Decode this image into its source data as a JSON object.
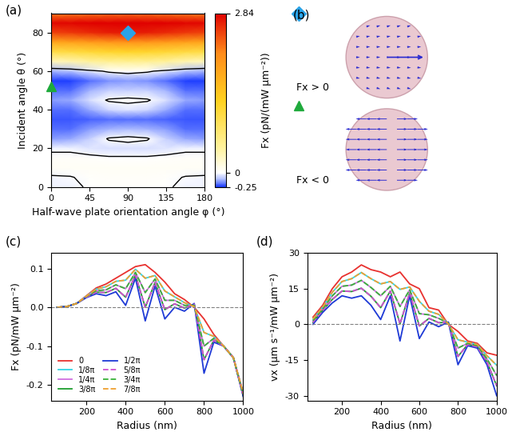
{
  "chart_data": [
    {
      "type": "heatmap",
      "label": "(a)",
      "x_label": "Half-wave plate orientation angle φ (°)",
      "y_label": "Incident angle θ (°)",
      "x": [
        0,
        22.5,
        45,
        67.5,
        90,
        112.5,
        135,
        157.5,
        180
      ],
      "y": [
        0,
        5,
        10,
        15,
        20,
        25,
        30,
        35,
        40,
        45,
        50,
        55,
        60,
        65,
        70,
        75,
        80,
        85,
        90
      ],
      "cells": [
        [
          -0.02,
          -0.02,
          0.01,
          0.02,
          0.02,
          0.02,
          0.01,
          -0.02,
          -0.02
        ],
        [
          -0.01,
          -0.005,
          0.02,
          0.03,
          0.03,
          0.03,
          0.02,
          -0.005,
          -0.01
        ],
        [
          0.04,
          0.04,
          0.05,
          0.05,
          0.05,
          0.05,
          0.05,
          0.04,
          0.04
        ],
        [
          0.03,
          0.03,
          0.02,
          0.01,
          0.01,
          0.01,
          0.02,
          0.03,
          0.03
        ],
        [
          -0.02,
          -0.02,
          -0.04,
          -0.05,
          -0.05,
          -0.05,
          -0.04,
          -0.02,
          -0.02
        ],
        [
          -0.15,
          -0.13,
          -0.08,
          0.01,
          0.03,
          0.01,
          -0.08,
          -0.13,
          -0.15
        ],
        [
          -0.2,
          -0.19,
          -0.15,
          -0.12,
          -0.11,
          -0.12,
          -0.15,
          -0.19,
          -0.2
        ],
        [
          -0.22,
          -0.22,
          -0.21,
          -0.2,
          -0.2,
          -0.2,
          -0.21,
          -0.22,
          -0.22
        ],
        [
          -0.2,
          -0.19,
          -0.14,
          -0.06,
          -0.04,
          -0.06,
          -0.14,
          -0.19,
          -0.2
        ],
        [
          -0.15,
          -0.13,
          -0.05,
          0.01,
          0.02,
          0.01,
          -0.05,
          -0.13,
          -0.15
        ],
        [
          -0.2,
          -0.19,
          -0.12,
          -0.08,
          -0.07,
          -0.08,
          -0.12,
          -0.19,
          -0.2
        ],
        [
          -0.25,
          -0.24,
          -0.2,
          -0.16,
          -0.15,
          -0.16,
          -0.2,
          -0.24,
          -0.25
        ],
        [
          -0.12,
          -0.1,
          -0.04,
          0.02,
          0.05,
          0.02,
          -0.04,
          -0.1,
          -0.12
        ],
        [
          0.3,
          0.35,
          0.45,
          0.5,
          0.52,
          0.5,
          0.45,
          0.35,
          0.3
        ],
        [
          1.0,
          1.05,
          1.12,
          1.18,
          1.2,
          1.18,
          1.12,
          1.05,
          1.0
        ],
        [
          1.8,
          1.85,
          1.92,
          1.98,
          2.0,
          1.98,
          1.92,
          1.85,
          1.8
        ],
        [
          2.5,
          2.55,
          2.62,
          2.68,
          2.7,
          2.68,
          2.62,
          2.55,
          2.5
        ],
        [
          2.8,
          2.81,
          2.83,
          2.84,
          2.84,
          2.84,
          2.83,
          2.81,
          2.8
        ],
        [
          2.2,
          2.22,
          2.26,
          2.29,
          2.3,
          2.29,
          2.26,
          2.22,
          2.2
        ]
      ],
      "contour_levels": [
        0
      ],
      "colorbar_label": "Fx (pN/(mW μm⁻²))",
      "colorbar_range": [
        -0.25,
        2.84
      ],
      "colorbar_ticks": [
        -0.25,
        0,
        2.84
      ],
      "xlim": [
        0,
        180
      ],
      "xticks": [
        0,
        45,
        90,
        135,
        180
      ],
      "ylim": [
        0,
        90
      ],
      "yticks": [
        0,
        20,
        40,
        60,
        80
      ],
      "points": [
        {
          "x": 90,
          "y": 80,
          "marker": "diamond",
          "color": "#29a3e8"
        },
        {
          "x": 0,
          "y": 52,
          "marker": "triangle",
          "color": "#1faa3c"
        }
      ]
    },
    {
      "type": "diagram",
      "label": "(b)",
      "items": [
        {
          "marker": "diamond",
          "color": "#29a3e8",
          "text": "Fx > 0"
        },
        {
          "marker": "triangle",
          "color": "#1faa3c",
          "text": "Fx < 0"
        }
      ]
    },
    {
      "type": "line",
      "label": "(c)",
      "x_label": "Radius (nm)",
      "y_label": "Fx (pN/mW μm⁻²)",
      "x": [
        50,
        100,
        150,
        200,
        250,
        300,
        350,
        400,
        450,
        500,
        550,
        600,
        650,
        700,
        750,
        800,
        850,
        900,
        950,
        1000
      ],
      "series": [
        {
          "name": "0",
          "color": "#e8312f",
          "line_style": "solid",
          "values": [
            0.0,
            0.002,
            0.01,
            0.03,
            0.05,
            0.06,
            0.075,
            0.09,
            0.105,
            0.11,
            0.09,
            0.065,
            0.035,
            0.02,
            0.0,
            -0.03,
            -0.07,
            -0.1,
            -0.13,
            -0.22
          ]
        },
        {
          "name": "1/8π",
          "color": "#33d6e6",
          "line_style": "solid",
          "values": [
            0.0,
            0.002,
            0.01,
            0.029,
            0.047,
            0.053,
            0.067,
            0.07,
            0.098,
            0.075,
            0.082,
            0.042,
            0.027,
            0.012,
            0.002,
            -0.065,
            -0.075,
            -0.1,
            -0.13,
            -0.222
          ]
        },
        {
          "name": "1/4π",
          "color": "#d070e0",
          "line_style": "solid",
          "values": [
            0.0,
            0.002,
            0.01,
            0.028,
            0.043,
            0.045,
            0.058,
            0.048,
            0.09,
            0.038,
            0.073,
            0.018,
            0.018,
            0.005,
            0.005,
            -0.1,
            -0.08,
            -0.1,
            -0.13,
            -0.225
          ]
        },
        {
          "name": "3/8π",
          "color": "#1e9e2e",
          "line_style": "solid",
          "values": [
            0.0,
            0.002,
            0.01,
            0.026,
            0.039,
            0.038,
            0.049,
            0.026,
            0.083,
            0.0,
            0.064,
            -0.006,
            0.009,
            -0.002,
            0.008,
            -0.135,
            -0.085,
            -0.1,
            -0.13,
            -0.228
          ]
        },
        {
          "name": "1/2π",
          "color": "#1e3ad6",
          "line_style": "solid",
          "values": [
            0.0,
            0.002,
            0.01,
            0.025,
            0.035,
            0.03,
            0.04,
            0.005,
            0.075,
            -0.035,
            0.055,
            -0.03,
            0.0,
            -0.01,
            0.01,
            -0.17,
            -0.09,
            -0.1,
            -0.13,
            -0.23
          ]
        },
        {
          "name": "5/8π",
          "color": "#d050d0",
          "line_style": "dashed",
          "values": [
            0.0,
            0.002,
            0.01,
            0.026,
            0.039,
            0.038,
            0.049,
            0.026,
            0.083,
            0.0,
            0.064,
            -0.006,
            0.009,
            -0.002,
            0.008,
            -0.135,
            -0.085,
            -0.1,
            -0.13,
            -0.228
          ]
        },
        {
          "name": "3/4π",
          "color": "#38b238",
          "line_style": "dashed",
          "values": [
            0.0,
            0.002,
            0.01,
            0.028,
            0.043,
            0.045,
            0.058,
            0.048,
            0.09,
            0.038,
            0.073,
            0.018,
            0.018,
            0.005,
            0.005,
            -0.1,
            -0.08,
            -0.1,
            -0.13,
            -0.225
          ]
        },
        {
          "name": "7/8π",
          "color": "#f0a030",
          "line_style": "dashed",
          "values": [
            0.0,
            0.002,
            0.01,
            0.029,
            0.047,
            0.053,
            0.067,
            0.07,
            0.098,
            0.075,
            0.082,
            0.042,
            0.027,
            0.012,
            0.002,
            -0.065,
            -0.075,
            -0.1,
            -0.13,
            -0.222
          ]
        }
      ],
      "xlim": [
        20,
        1000
      ],
      "xticks": [
        200,
        400,
        600,
        800,
        1000
      ],
      "ylim": [
        -0.24,
        0.14
      ],
      "yticks": [
        -0.2,
        -0.1,
        {
          "value": 0,
          "label": "0.0"
        },
        0.1
      ],
      "reference_line": 0,
      "legend": "lower left"
    },
    {
      "type": "line",
      "label": "(d)",
      "x_label": "Radius (nm)",
      "y_label": "vx (μm s⁻¹/mW μm⁻²)",
      "x": [
        50,
        100,
        150,
        200,
        250,
        300,
        350,
        400,
        450,
        500,
        550,
        600,
        650,
        700,
        750,
        800,
        850,
        900,
        950,
        1000
      ],
      "series": [
        {
          "name": "0",
          "color": "#e8312f",
          "line_style": "solid",
          "values": [
            3,
            8,
            15,
            20,
            22,
            25,
            23,
            22,
            20,
            22,
            17,
            15,
            7,
            6,
            0,
            -3,
            -7,
            -8,
            -12,
            -13
          ]
        },
        {
          "name": "1/8π",
          "color": "#33d6e6",
          "line_style": "solid",
          "values": [
            2.2,
            7.2,
            13.5,
            18,
            19.2,
            21.8,
            19.2,
            17,
            18,
            14.7,
            15.7,
            9.7,
            5.5,
            4.2,
            0.2,
            -6.5,
            -7.5,
            -8.5,
            -13.2,
            -17.2
          ]
        },
        {
          "name": "1/4π",
          "color": "#d070e0",
          "line_style": "solid",
          "values": [
            1.5,
            6.5,
            12,
            16,
            16.5,
            18.5,
            15.5,
            12,
            16,
            7.5,
            14.5,
            4.5,
            4,
            2.5,
            0.5,
            -10,
            -8,
            -9,
            -14.5,
            -21.5
          ]
        },
        {
          "name": "3/8π",
          "color": "#1e9e2e",
          "line_style": "solid",
          "values": [
            0.8,
            5.8,
            10.5,
            14,
            13.8,
            15.2,
            11.8,
            7,
            14,
            0.2,
            13.2,
            -0.7,
            2.5,
            0.7,
            0.8,
            -13.5,
            -8.5,
            -9.5,
            -15.8,
            -25.8
          ]
        },
        {
          "name": "1/2π",
          "color": "#1e3ad6",
          "line_style": "solid",
          "values": [
            0,
            5,
            9,
            12,
            11,
            12,
            8,
            2,
            12,
            -7,
            12,
            -6,
            1,
            -1,
            1,
            -17,
            -9,
            -10,
            -17,
            -30
          ]
        },
        {
          "name": "5/8π",
          "color": "#d050d0",
          "line_style": "dashed",
          "values": [
            0.8,
            5.8,
            10.5,
            14,
            13.8,
            15.2,
            11.8,
            7,
            14,
            0.2,
            13.2,
            -0.7,
            2.5,
            0.7,
            0.8,
            -13.5,
            -8.5,
            -9.5,
            -15.8,
            -25.8
          ]
        },
        {
          "name": "3/4π",
          "color": "#38b238",
          "line_style": "dashed",
          "values": [
            1.5,
            6.5,
            12,
            16,
            16.5,
            18.5,
            15.5,
            12,
            16,
            7.5,
            14.5,
            4.5,
            4,
            2.5,
            0.5,
            -10,
            -8,
            -9,
            -14.5,
            -21.5
          ]
        },
        {
          "name": "7/8π",
          "color": "#f0a030",
          "line_style": "dashed",
          "values": [
            2.2,
            7.2,
            13.5,
            18,
            19.2,
            21.8,
            19.2,
            17,
            18,
            14.7,
            15.7,
            9.7,
            5.5,
            4.2,
            0.2,
            -6.5,
            -7.5,
            -8.5,
            -13.2,
            -17.2
          ]
        }
      ],
      "xlim": [
        20,
        1000
      ],
      "xticks": [
        200,
        400,
        600,
        800,
        1000
      ],
      "ylim": [
        -32,
        30
      ],
      "yticks": [
        -30,
        -15,
        0,
        15,
        30
      ],
      "reference_line": 0
    }
  ]
}
